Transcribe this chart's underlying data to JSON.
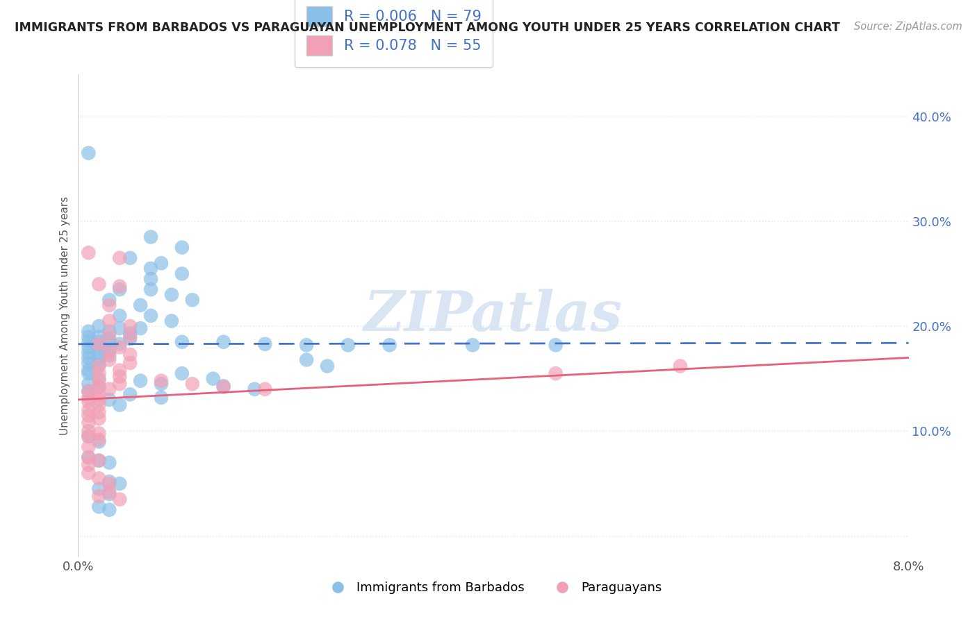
{
  "title": "IMMIGRANTS FROM BARBADOS VS PARAGUAYAN UNEMPLOYMENT AMONG YOUTH UNDER 25 YEARS CORRELATION CHART",
  "source": "Source: ZipAtlas.com",
  "ylabel": "Unemployment Among Youth under 25 years",
  "yticks": [
    0.0,
    0.1,
    0.2,
    0.3,
    0.4
  ],
  "ytick_labels": [
    "",
    "10.0%",
    "20.0%",
    "30.0%",
    "40.0%"
  ],
  "xtick_labels": [
    "0.0%",
    "8.0%"
  ],
  "xlim": [
    0.0,
    0.08
  ],
  "ylim": [
    -0.02,
    0.44
  ],
  "legend_blue_r": "0.006",
  "legend_blue_n": "79",
  "legend_pink_r": "0.078",
  "legend_pink_n": "55",
  "blue_color": "#8ABFE8",
  "pink_color": "#F2A0B5",
  "blue_line_color": "#4472C4",
  "pink_line_color": "#E8607A",
  "tick_color": "#4472C4",
  "watermark_text": "ZIPatlas",
  "watermark_color": "#D0DFF0",
  "blue_scatter": [
    [
      0.001,
      0.365
    ],
    [
      0.007,
      0.285
    ],
    [
      0.01,
      0.275
    ],
    [
      0.007,
      0.255
    ],
    [
      0.01,
      0.25
    ],
    [
      0.007,
      0.245
    ],
    [
      0.005,
      0.265
    ],
    [
      0.008,
      0.26
    ],
    [
      0.004,
      0.235
    ],
    [
      0.007,
      0.235
    ],
    [
      0.009,
      0.23
    ],
    [
      0.011,
      0.225
    ],
    [
      0.003,
      0.225
    ],
    [
      0.006,
      0.22
    ],
    [
      0.004,
      0.21
    ],
    [
      0.007,
      0.21
    ],
    [
      0.009,
      0.205
    ],
    [
      0.002,
      0.2
    ],
    [
      0.004,
      0.198
    ],
    [
      0.006,
      0.198
    ],
    [
      0.001,
      0.195
    ],
    [
      0.003,
      0.195
    ],
    [
      0.005,
      0.193
    ],
    [
      0.001,
      0.19
    ],
    [
      0.002,
      0.19
    ],
    [
      0.003,
      0.188
    ],
    [
      0.005,
      0.188
    ],
    [
      0.001,
      0.185
    ],
    [
      0.002,
      0.185
    ],
    [
      0.003,
      0.185
    ],
    [
      0.004,
      0.183
    ],
    [
      0.001,
      0.18
    ],
    [
      0.002,
      0.18
    ],
    [
      0.003,
      0.178
    ],
    [
      0.001,
      0.175
    ],
    [
      0.002,
      0.173
    ],
    [
      0.003,
      0.172
    ],
    [
      0.001,
      0.17
    ],
    [
      0.002,
      0.168
    ],
    [
      0.001,
      0.165
    ],
    [
      0.002,
      0.163
    ],
    [
      0.001,
      0.158
    ],
    [
      0.01,
      0.185
    ],
    [
      0.014,
      0.185
    ],
    [
      0.018,
      0.183
    ],
    [
      0.022,
      0.182
    ],
    [
      0.026,
      0.182
    ],
    [
      0.03,
      0.182
    ],
    [
      0.038,
      0.182
    ],
    [
      0.046,
      0.182
    ],
    [
      0.001,
      0.155
    ],
    [
      0.002,
      0.15
    ],
    [
      0.001,
      0.145
    ],
    [
      0.002,
      0.142
    ],
    [
      0.001,
      0.138
    ],
    [
      0.003,
      0.13
    ],
    [
      0.004,
      0.125
    ],
    [
      0.001,
      0.095
    ],
    [
      0.002,
      0.09
    ],
    [
      0.001,
      0.075
    ],
    [
      0.002,
      0.072
    ],
    [
      0.003,
      0.07
    ],
    [
      0.003,
      0.052
    ],
    [
      0.004,
      0.05
    ],
    [
      0.002,
      0.045
    ],
    [
      0.003,
      0.04
    ],
    [
      0.002,
      0.028
    ],
    [
      0.003,
      0.025
    ],
    [
      0.022,
      0.168
    ],
    [
      0.024,
      0.162
    ],
    [
      0.01,
      0.155
    ],
    [
      0.013,
      0.15
    ],
    [
      0.006,
      0.148
    ],
    [
      0.008,
      0.145
    ],
    [
      0.014,
      0.143
    ],
    [
      0.017,
      0.14
    ],
    [
      0.005,
      0.135
    ],
    [
      0.008,
      0.132
    ]
  ],
  "pink_scatter": [
    [
      0.001,
      0.27
    ],
    [
      0.004,
      0.265
    ],
    [
      0.002,
      0.24
    ],
    [
      0.004,
      0.238
    ],
    [
      0.003,
      0.22
    ],
    [
      0.003,
      0.205
    ],
    [
      0.005,
      0.2
    ],
    [
      0.003,
      0.192
    ],
    [
      0.005,
      0.19
    ],
    [
      0.002,
      0.183
    ],
    [
      0.004,
      0.18
    ],
    [
      0.003,
      0.175
    ],
    [
      0.005,
      0.173
    ],
    [
      0.003,
      0.168
    ],
    [
      0.005,
      0.165
    ],
    [
      0.002,
      0.162
    ],
    [
      0.004,
      0.158
    ],
    [
      0.002,
      0.155
    ],
    [
      0.004,
      0.152
    ],
    [
      0.002,
      0.148
    ],
    [
      0.004,
      0.145
    ],
    [
      0.002,
      0.142
    ],
    [
      0.003,
      0.14
    ],
    [
      0.001,
      0.138
    ],
    [
      0.002,
      0.135
    ],
    [
      0.001,
      0.132
    ],
    [
      0.002,
      0.13
    ],
    [
      0.001,
      0.128
    ],
    [
      0.002,
      0.125
    ],
    [
      0.001,
      0.12
    ],
    [
      0.002,
      0.118
    ],
    [
      0.001,
      0.115
    ],
    [
      0.002,
      0.112
    ],
    [
      0.001,
      0.108
    ],
    [
      0.001,
      0.1
    ],
    [
      0.002,
      0.098
    ],
    [
      0.001,
      0.095
    ],
    [
      0.002,
      0.092
    ],
    [
      0.001,
      0.085
    ],
    [
      0.001,
      0.075
    ],
    [
      0.002,
      0.072
    ],
    [
      0.001,
      0.068
    ],
    [
      0.001,
      0.06
    ],
    [
      0.002,
      0.055
    ],
    [
      0.003,
      0.05
    ],
    [
      0.003,
      0.042
    ],
    [
      0.002,
      0.038
    ],
    [
      0.004,
      0.035
    ],
    [
      0.046,
      0.155
    ],
    [
      0.058,
      0.162
    ],
    [
      0.008,
      0.148
    ],
    [
      0.011,
      0.145
    ],
    [
      0.014,
      0.142
    ],
    [
      0.018,
      0.14
    ]
  ],
  "blue_trend_x": [
    0.0,
    0.08
  ],
  "blue_trend_y": [
    0.183,
    0.184
  ],
  "pink_trend_x": [
    0.0,
    0.08
  ],
  "pink_trend_y": [
    0.13,
    0.17
  ],
  "background_color": "#FFFFFF",
  "grid_color": "#DDEEFF",
  "grid_linestyle": "dotted"
}
